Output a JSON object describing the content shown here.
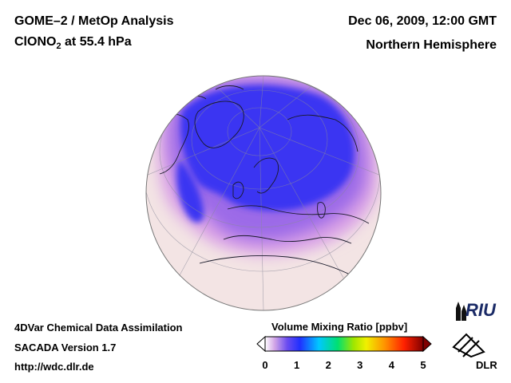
{
  "header": {
    "title_line1": "GOME–2 / MetOp Analysis",
    "species_prefix": "ClONO",
    "species_subscript": "2",
    "species_suffix": " at 55.4 hPa",
    "date": "Dec 06, 2009, 12:00 GMT",
    "region": "Northern Hemisphere"
  },
  "footer": {
    "line1": "4DVar Chemical Data Assimilation",
    "line2": "SACADA Version 1.7",
    "url": "http://wdc.dlr.de"
  },
  "colorbar": {
    "title": "Volume Mixing Ratio [ppbv]",
    "ticks": [
      "0",
      "1",
      "2",
      "3",
      "4",
      "5"
    ],
    "range": [
      0,
      5
    ],
    "colors": [
      "#ffffff",
      "#c06ec4",
      "#3333ff",
      "#00c8ff",
      "#00e070",
      "#f0f000",
      "#ff9000",
      "#ff2000",
      "#800000"
    ]
  },
  "logos": {
    "riu": "RIU",
    "dlr": "DLR"
  },
  "map": {
    "projection": "orthographic",
    "background_color": "#f4e6e6",
    "vortex_color": "#3a36f2",
    "edge_color": "#cf92e0"
  }
}
